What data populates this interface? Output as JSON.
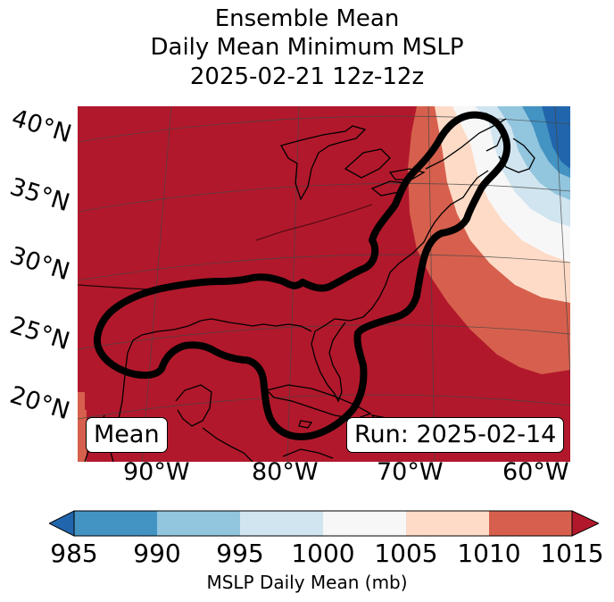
{
  "title": {
    "line1": "Ensemble Mean",
    "line2": "Daily Mean Minimum MSLP",
    "line3": "2025-02-21 12z-12z"
  },
  "map": {
    "lat_labels": [
      "40°N",
      "35°N",
      "30°N",
      "25°N",
      "20°N"
    ],
    "lon_labels": [
      "90°W",
      "80°W",
      "70°W",
      "60°W"
    ],
    "mean_badge": "Mean",
    "run_badge": "Run: 2025-02-14",
    "outline_color": "#000000"
  },
  "colorbar": {
    "label": "MSLP Daily Mean (mb)",
    "ticks": [
      "985",
      "990",
      "995",
      "1000",
      "1005",
      "1010",
      "1015"
    ],
    "bins": [
      {
        "range": "<985",
        "color": "#2166ac"
      },
      {
        "range": "985-990",
        "color": "#4393c3"
      },
      {
        "range": "990-995",
        "color": "#92c5de"
      },
      {
        "range": "995-1000",
        "color": "#d1e5f0"
      },
      {
        "range": "1000-1005",
        "color": "#f7f7f7"
      },
      {
        "range": "1005-1010",
        "color": "#fddbc7"
      },
      {
        "range": "1010-1015",
        "color": "#d6604d"
      },
      {
        "range": ">1015",
        "color": "#b2182b"
      }
    ]
  }
}
